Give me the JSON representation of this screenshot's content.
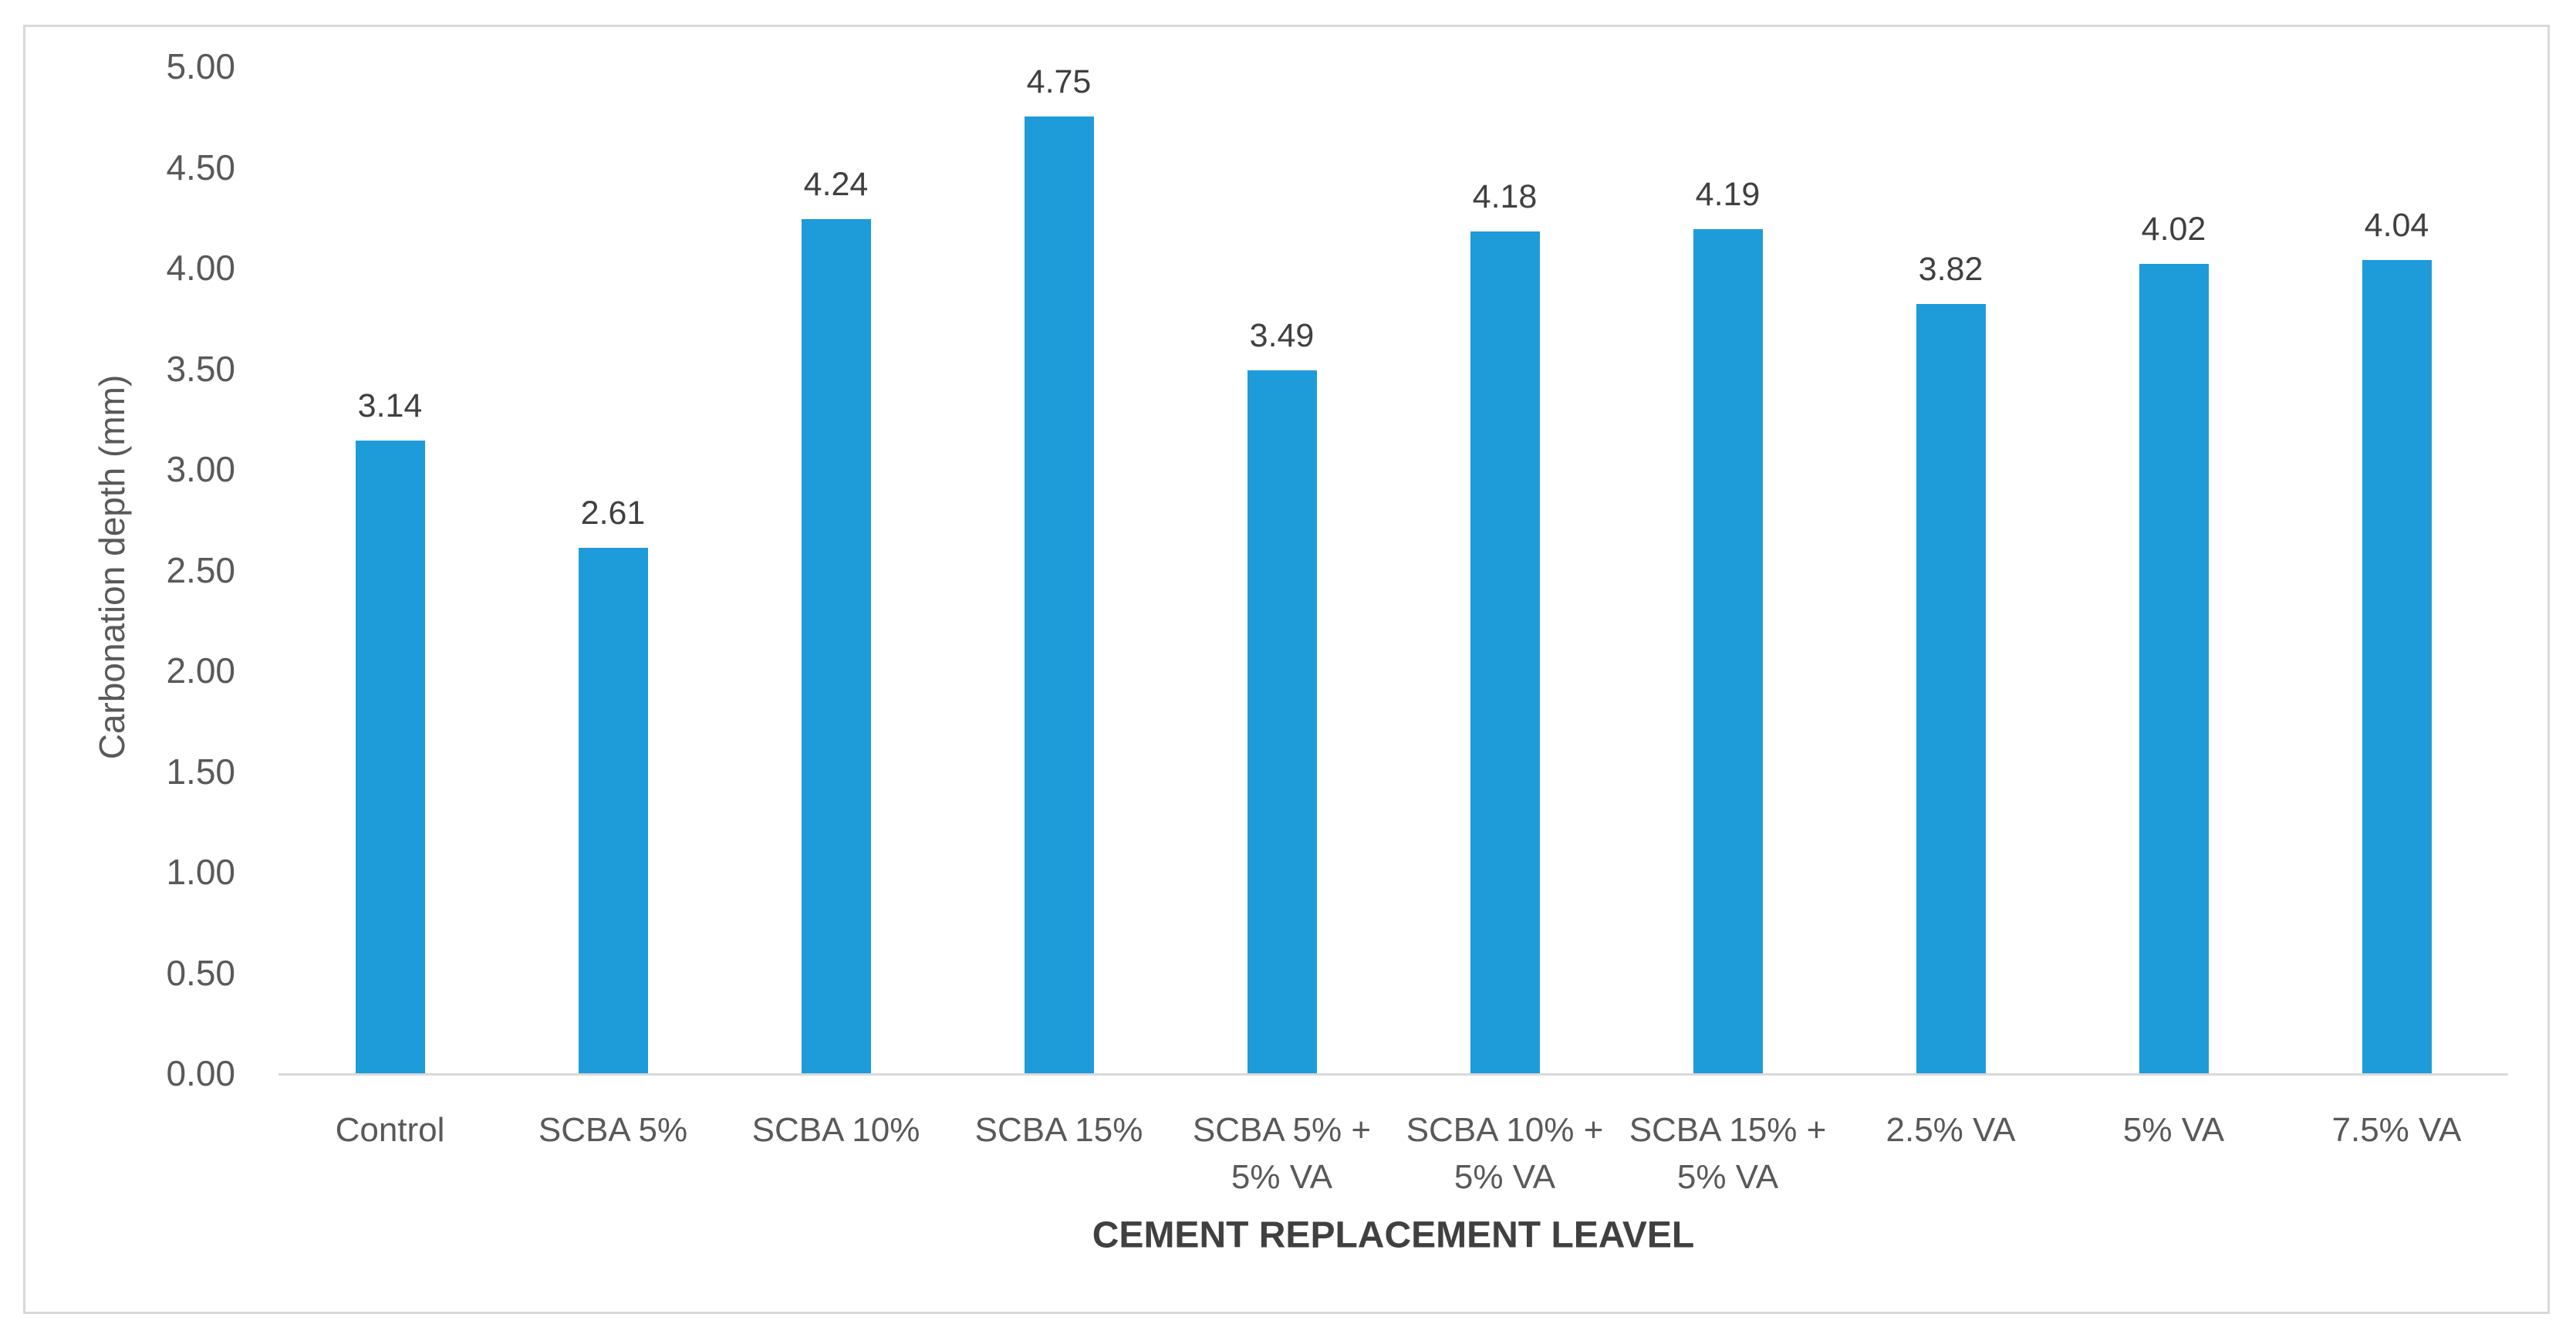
{
  "chart_data": {
    "type": "bar",
    "title": "",
    "categories": [
      "Control",
      "SCBA 5%",
      "SCBA 10%",
      "SCBA 15%",
      "SCBA 5% + 5% VA",
      "SCBA 10% + 5% VA",
      "SCBA 15% + 5% VA",
      "2.5% VA",
      "5% VA",
      "7.5% VA"
    ],
    "values": [
      3.14,
      2.61,
      4.24,
      4.75,
      3.49,
      4.18,
      4.19,
      3.82,
      4.02,
      4.04
    ],
    "xlabel": "CEMENT REPLACEMENT LEAVEL",
    "ylabel": "Carbonation depth (mm)",
    "ylim": [
      0,
      5
    ],
    "ytick_labels": [
      "0.00",
      "0.50",
      "1.00",
      "1.50",
      "2.00",
      "2.50",
      "3.00",
      "3.50",
      "4.00",
      "4.50",
      "5.00"
    ],
    "grid": false,
    "legend": false,
    "data_labels": "outside-end, two decimals",
    "colors": {
      "bar": "#1E9BD9",
      "data_label": "#404040",
      "axis_text": "#595959",
      "axis_title": "#404040",
      "axis_line": "#D9D9D9",
      "frame_border": "#D9D9D9"
    }
  }
}
